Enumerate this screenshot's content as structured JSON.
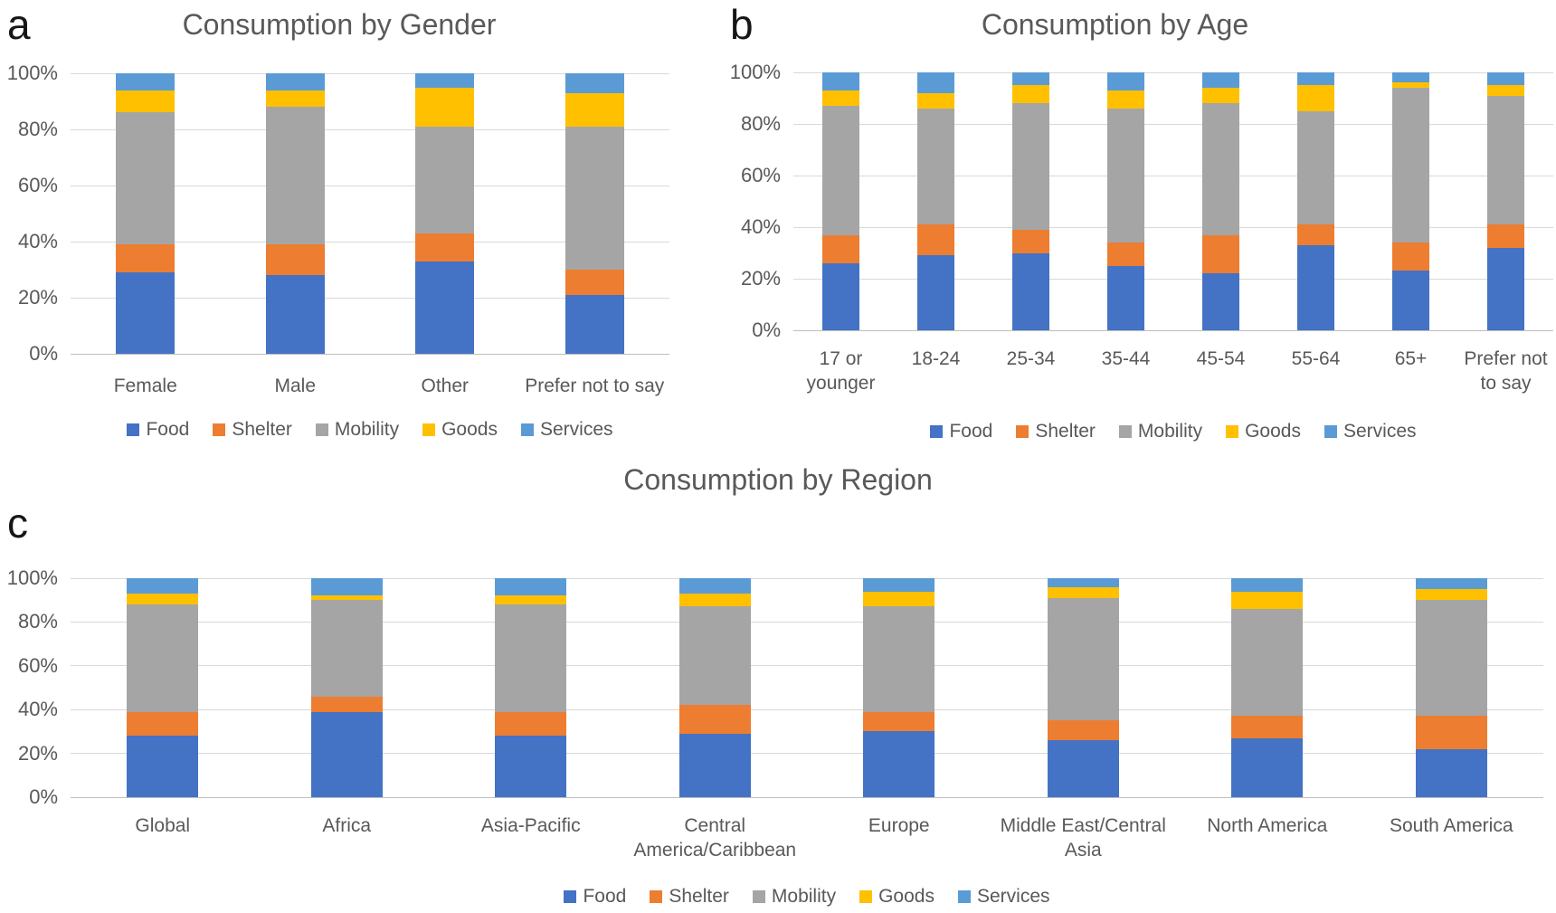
{
  "figure": {
    "panels": [
      {
        "letter": "a"
      },
      {
        "letter": "b"
      },
      {
        "letter": "c"
      }
    ]
  },
  "palette": {
    "food": "#4472C4",
    "shelter": "#ED7D31",
    "mobility": "#A5A5A5",
    "goods": "#FFC000",
    "services": "#5B9BD5"
  },
  "chart_data": [
    {
      "type": "bar",
      "stacked": true,
      "units": "percent",
      "title": "Consumption by Gender",
      "categories": [
        "Female",
        "Male",
        "Other",
        "Prefer not to say"
      ],
      "series": [
        {
          "name": "Food",
          "color": "#4472C4",
          "values": [
            29,
            28,
            33,
            21
          ]
        },
        {
          "name": "Shelter",
          "color": "#ED7D31",
          "values": [
            10,
            11,
            10,
            9
          ]
        },
        {
          "name": "Mobility",
          "color": "#A5A5A5",
          "values": [
            47,
            49,
            38,
            51
          ]
        },
        {
          "name": "Goods",
          "color": "#FFC000",
          "values": [
            8,
            6,
            14,
            12
          ]
        },
        {
          "name": "Services",
          "color": "#5B9BD5",
          "values": [
            6,
            6,
            5,
            7
          ]
        }
      ],
      "ylim": [
        0,
        100
      ],
      "yticks": [
        "0%",
        "20%",
        "40%",
        "60%",
        "80%",
        "100%"
      ],
      "grid": true,
      "legend_position": "bottom"
    },
    {
      "type": "bar",
      "stacked": true,
      "units": "percent",
      "title": "Consumption by Age",
      "categories": [
        "17 or\nyounger",
        "18-24",
        "25-34",
        "35-44",
        "45-54",
        "55-64",
        "65+",
        "Prefer not\nto say"
      ],
      "series": [
        {
          "name": "Food",
          "color": "#4472C4",
          "values": [
            26,
            29,
            30,
            25,
            22,
            33,
            23,
            32
          ]
        },
        {
          "name": "Shelter",
          "color": "#ED7D31",
          "values": [
            11,
            12,
            9,
            9,
            15,
            8,
            11,
            9
          ]
        },
        {
          "name": "Mobility",
          "color": "#A5A5A5",
          "values": [
            50,
            45,
            49,
            52,
            51,
            44,
            60,
            50
          ]
        },
        {
          "name": "Goods",
          "color": "#FFC000",
          "values": [
            6,
            6,
            7,
            7,
            6,
            10,
            2,
            4
          ]
        },
        {
          "name": "Services",
          "color": "#5B9BD5",
          "values": [
            7,
            8,
            5,
            7,
            6,
            5,
            4,
            5
          ]
        }
      ],
      "ylim": [
        0,
        100
      ],
      "yticks": [
        "0%",
        "20%",
        "40%",
        "60%",
        "80%",
        "100%"
      ],
      "grid": true,
      "legend_position": "bottom"
    },
    {
      "type": "bar",
      "stacked": true,
      "units": "percent",
      "title": "Consumption by Region",
      "categories": [
        "Global",
        "Africa",
        "Asia-Pacific",
        "Central\nAmerica/Caribbean",
        "Europe",
        "Middle East/Central\nAsia",
        "North America",
        "South America"
      ],
      "series": [
        {
          "name": "Food",
          "color": "#4472C4",
          "values": [
            28,
            39,
            28,
            29,
            30,
            26,
            27,
            22
          ]
        },
        {
          "name": "Shelter",
          "color": "#ED7D31",
          "values": [
            11,
            7,
            11,
            13,
            9,
            9,
            10,
            15
          ]
        },
        {
          "name": "Mobility",
          "color": "#A5A5A5",
          "values": [
            49,
            44,
            49,
            45,
            48,
            56,
            49,
            53
          ]
        },
        {
          "name": "Goods",
          "color": "#FFC000",
          "values": [
            5,
            2,
            4,
            6,
            7,
            5,
            8,
            5
          ]
        },
        {
          "name": "Services",
          "color": "#5B9BD5",
          "values": [
            7,
            8,
            8,
            7,
            6,
            4,
            6,
            5
          ]
        }
      ],
      "ylim": [
        0,
        100
      ],
      "yticks": [
        "0%",
        "20%",
        "40%",
        "60%",
        "80%",
        "100%"
      ],
      "grid": true,
      "legend_position": "bottom"
    }
  ]
}
